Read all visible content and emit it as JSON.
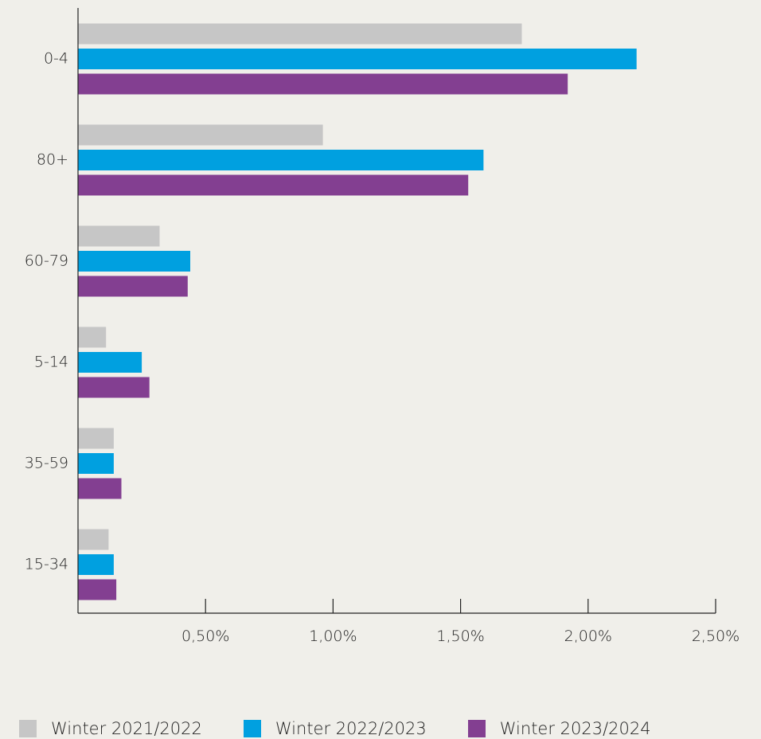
{
  "chart_data": {
    "type": "bar",
    "orientation": "horizontal",
    "categories": [
      "0-4",
      "80+",
      "60-79",
      "5-14",
      "35-59",
      "15-34"
    ],
    "series": [
      {
        "name": "Winter 2021/2022",
        "color": "#c6c6c6",
        "values": [
          1.74,
          0.96,
          0.32,
          0.11,
          0.14,
          0.12
        ]
      },
      {
        "name": "Winter 2022/2023",
        "color": "#00a0e0",
        "values": [
          2.19,
          1.59,
          0.44,
          0.25,
          0.14,
          0.14
        ]
      },
      {
        "name": "Winter 2023/2024",
        "color": "#833f91",
        "values": [
          1.92,
          1.53,
          0.43,
          0.28,
          0.17,
          0.15
        ]
      }
    ],
    "xlim": [
      0,
      2.5
    ],
    "xticks": [
      {
        "value": 0.5,
        "label": "0,50%"
      },
      {
        "value": 1.0,
        "label": "1,00%"
      },
      {
        "value": 1.5,
        "label": "1,50%"
      },
      {
        "value": 2.0,
        "label": "2,00%"
      },
      {
        "value": 2.5,
        "label": "2,50%"
      }
    ],
    "title": "",
    "xlabel": "",
    "ylabel": "",
    "grid": false,
    "legend_position": "bottom"
  }
}
